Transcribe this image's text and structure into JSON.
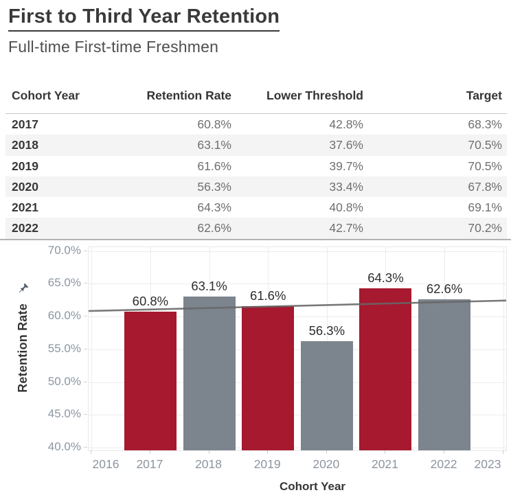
{
  "header": {
    "title": "First to Third Year Retention",
    "subtitle": "Full-time First-time Freshmen"
  },
  "table": {
    "columns": [
      "Cohort Year",
      "Retention Rate",
      "Lower Threshold",
      "Target"
    ],
    "rows": [
      {
        "year": "2017",
        "retention": "60.8%",
        "lower": "42.8%",
        "target": "68.3%"
      },
      {
        "year": "2018",
        "retention": "63.1%",
        "lower": "37.6%",
        "target": "70.5%"
      },
      {
        "year": "2019",
        "retention": "61.6%",
        "lower": "39.7%",
        "target": "70.5%"
      },
      {
        "year": "2020",
        "retention": "56.3%",
        "lower": "33.4%",
        "target": "67.8%"
      },
      {
        "year": "2021",
        "retention": "64.3%",
        "lower": "40.8%",
        "target": "69.1%"
      },
      {
        "year": "2022",
        "retention": "62.6%",
        "lower": "42.7%",
        "target": "70.2%"
      }
    ],
    "stripe_color": "#f4f4f4"
  },
  "chart_data": {
    "type": "bar",
    "title": "First to Third Year Retention",
    "xlabel": "Cohort Year",
    "ylabel": "Retention Rate",
    "x": [
      2017,
      2018,
      2019,
      2020,
      2021,
      2022
    ],
    "values": [
      60.8,
      63.1,
      61.6,
      56.3,
      64.3,
      62.6
    ],
    "bar_value_labels": [
      "60.8%",
      "63.1%",
      "61.6%",
      "56.3%",
      "64.3%",
      "62.6%"
    ],
    "bar_colors": [
      "#A6192E",
      "#7C848D",
      "#A6192E",
      "#7C848D",
      "#A6192E",
      "#7C848D"
    ],
    "x_ticks": [
      {
        "v": 2016,
        "label": "2016"
      },
      {
        "v": 2017,
        "label": "2017"
      },
      {
        "v": 2018,
        "label": "2018"
      },
      {
        "v": 2019,
        "label": "2019"
      },
      {
        "v": 2020,
        "label": "2020"
      },
      {
        "v": 2021,
        "label": "2021"
      },
      {
        "v": 2022,
        "label": "2022"
      },
      {
        "v": 2023,
        "label": "2023"
      }
    ],
    "y_ticks": [
      {
        "v": 70,
        "label": "70.0%"
      },
      {
        "v": 65,
        "label": "65.0%"
      },
      {
        "v": 60,
        "label": "60.0%"
      },
      {
        "v": 55,
        "label": "55.0%"
      },
      {
        "v": 50,
        "label": "50.0%"
      },
      {
        "v": 45,
        "label": "45.0%"
      },
      {
        "v": 40,
        "label": "40.0%"
      }
    ],
    "xlim": [
      2015.95,
      2023.05
    ],
    "ylim": [
      39.6,
      70.6
    ],
    "grid": true,
    "legend": "none",
    "trend_line": {
      "x1": 2015.95,
      "y1": 60.85,
      "x2": 2023.05,
      "y2": 62.45,
      "color": "#666666"
    },
    "accent_color": "#A6192E",
    "secondary_color": "#7C848D",
    "pin_icon_color": "#4d5966"
  }
}
